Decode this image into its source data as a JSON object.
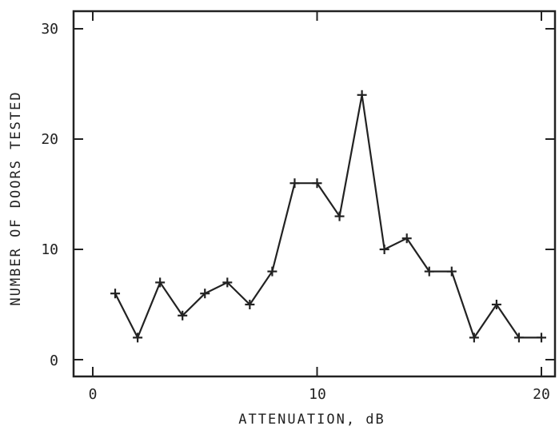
{
  "chart_data": {
    "type": "line",
    "title": "",
    "xlabel": "ATTENUATION, dB",
    "ylabel": "NUMBER OF DOORS TESTED",
    "xlim": [
      0,
      20
    ],
    "ylim": [
      0,
      30
    ],
    "xticks": [
      0,
      10,
      20
    ],
    "yticks": [
      0,
      10,
      20,
      30
    ],
    "grid": false,
    "marker": "plus",
    "line_color": "#222222",
    "series": [
      {
        "x": [
          1,
          2,
          3,
          4,
          5,
          6,
          7,
          8,
          9,
          10,
          11,
          12,
          13,
          14,
          15,
          16,
          17,
          18,
          19,
          20
        ],
        "values": [
          6,
          2,
          7,
          4,
          6,
          7,
          5,
          8,
          16,
          16,
          13,
          24,
          10,
          11,
          8,
          8,
          2,
          5,
          2,
          2
        ]
      }
    ]
  }
}
